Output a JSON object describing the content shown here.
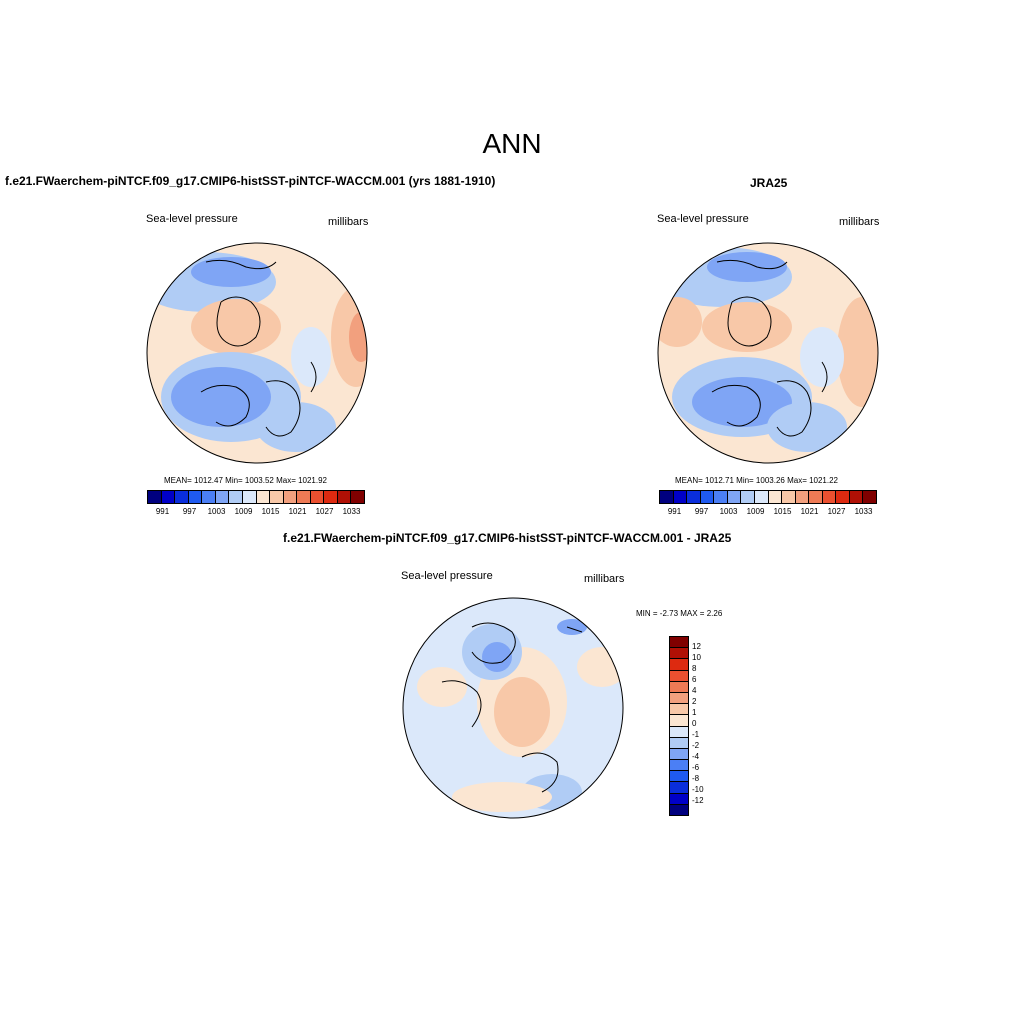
{
  "figure": {
    "title": "ANN",
    "panel_top_left": {
      "title": "f.e21.FWaerchem-piNTCF.f09_g17.CMIP6-histSST-piNTCF-WACCM.001 (yrs 1881-1910)",
      "variable": "Sea-level pressure",
      "units": "millibars",
      "stats": "MEAN= 1012.47  Min= 1003.52  Max= 1021.92"
    },
    "panel_top_right": {
      "title": "JRA25",
      "variable": "Sea-level pressure",
      "units": "millibars",
      "stats": "MEAN= 1012.71  Min= 1003.26  Max= 1021.22"
    },
    "panel_bottom": {
      "title": "f.e21.FWaerchem-piNTCF.f09_g17.CMIP6-histSST-piNTCF-WACCM.001 - JRA25",
      "variable": "Sea-level pressure",
      "units": "millibars",
      "stats": "MIN =  -2.73 MAX =   2.26"
    }
  },
  "colorbar_abs": {
    "colors": [
      "#00007f",
      "#0000c8",
      "#0a2edc",
      "#1f5af0",
      "#4b7ff5",
      "#7fa5f5",
      "#b0ccf5",
      "#dbe8fa",
      "#fbe6d2",
      "#f8c8a8",
      "#f2a07e",
      "#ee7a55",
      "#eb5030",
      "#dd2a10",
      "#b01005",
      "#800000"
    ],
    "tick_labels": [
      "991",
      "997",
      "1003",
      "1009",
      "1015",
      "1021",
      "1027",
      "1033"
    ]
  },
  "colorbar_diff": {
    "colors": [
      "#800000",
      "#b01005",
      "#dd2a10",
      "#eb5030",
      "#ee7a55",
      "#f2a07e",
      "#f8c8a8",
      "#fbe6d2",
      "#dbe8fa",
      "#b0ccf5",
      "#7fa5f5",
      "#4b7ff5",
      "#1f5af0",
      "#0a2edc",
      "#0000c8",
      "#00007f"
    ],
    "tick_labels": [
      "12",
      "10",
      "8",
      "6",
      "4",
      "2",
      "1",
      "0",
      "-1",
      "-2",
      "-4",
      "-6",
      "-8",
      "-10",
      "-12"
    ]
  }
}
